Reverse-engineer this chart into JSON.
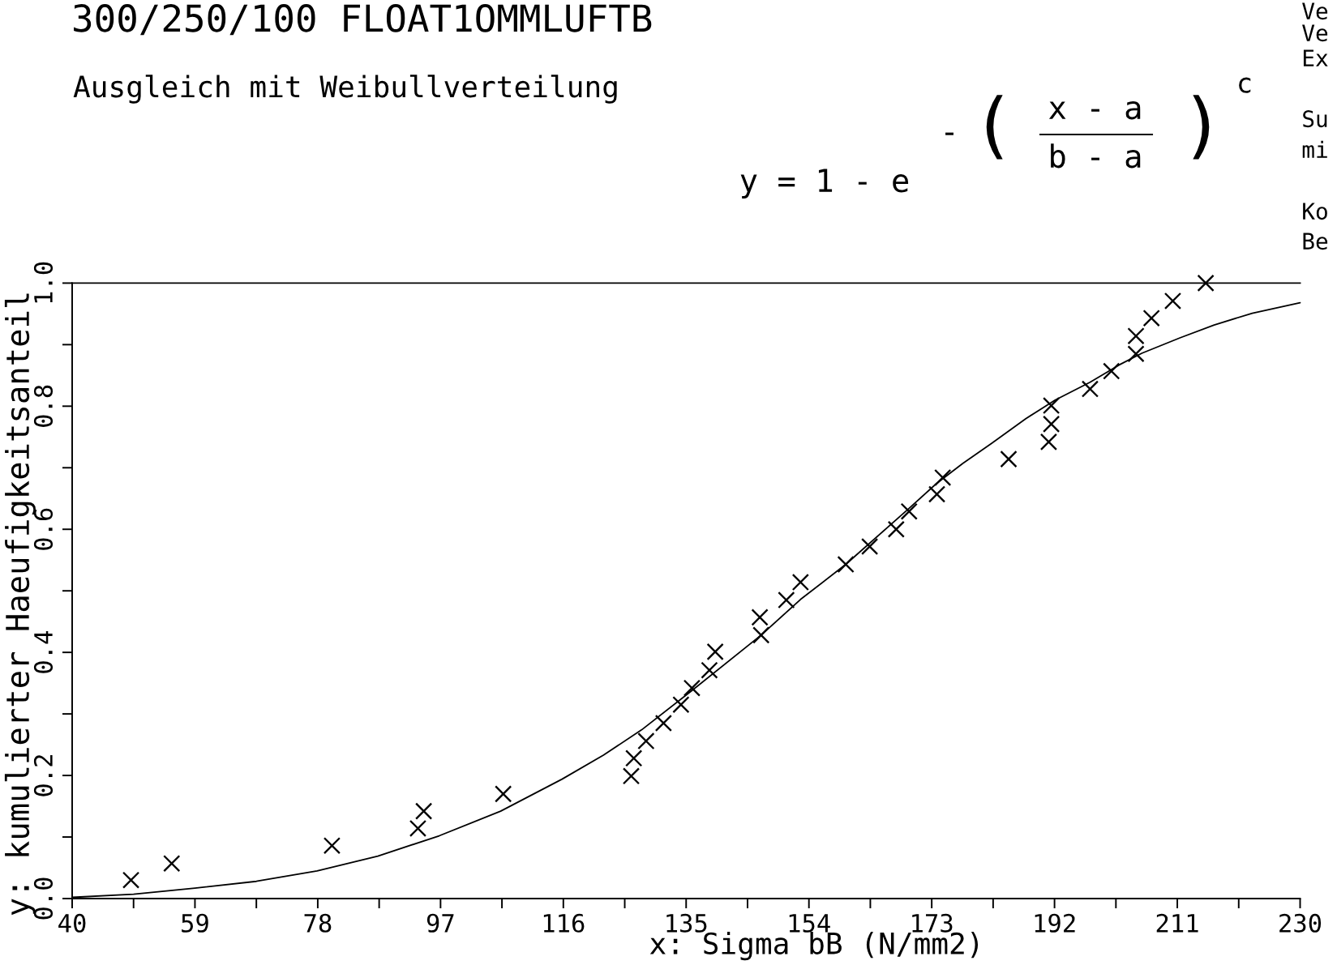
{
  "chart_data": {
    "type": "scatter",
    "title": "300/250/100 FLOAT1OMMLUFTB",
    "subtitle": "Ausgleich mit Weibullverteilung",
    "xlabel": "x: Sigma bB (N/mm2)",
    "ylabel": "y: kumulierter Haeufigkeitsanteil",
    "annotations": [
      "y = 1 - e",
      "-",
      "(",
      "x - a",
      "b - a",
      ")",
      "c",
      "Ve",
      "Ve",
      "Ex",
      "Su",
      "mi",
      "Ko",
      "Be"
    ],
    "xlim": [
      40,
      230
    ],
    "ylim": [
      0.0,
      1.0
    ],
    "xticks": [
      40,
      {
        "value": 49.5,
        "label": null
      },
      59,
      {
        "value": 68.5,
        "label": null
      },
      78,
      {
        "value": 87.5,
        "label": null
      },
      97,
      {
        "value": 106.5,
        "label": null
      },
      116,
      {
        "value": 125.5,
        "label": null
      },
      135,
      {
        "value": 144.5,
        "label": null
      },
      154,
      {
        "value": 163.5,
        "label": null
      },
      173,
      {
        "value": 182.5,
        "label": null
      },
      192,
      {
        "value": 201.5,
        "label": null
      },
      211,
      {
        "value": 220.5,
        "label": null
      },
      230
    ],
    "yticks": [
      {
        "value": 0.0,
        "label": "0.0"
      },
      {
        "value": 0.1,
        "label": null
      },
      {
        "value": 0.2,
        "label": "0.2"
      },
      {
        "value": 0.3,
        "label": null
      },
      {
        "value": 0.4,
        "label": "0.4"
      },
      {
        "value": 0.5,
        "label": null
      },
      {
        "value": 0.6,
        "label": "0.6"
      },
      {
        "value": 0.7,
        "label": null
      },
      {
        "value": 0.8,
        "label": "0.8"
      },
      {
        "value": 0.9,
        "label": null
      },
      {
        "value": 1.0,
        "label": "1.0"
      }
    ],
    "ref_lines": [
      {
        "axis": "y",
        "value": 1.0,
        "color": "#000000"
      }
    ],
    "series": [
      {
        "type": "scatter",
        "color": "#000000",
        "marker": "cross",
        "x": [
          49.1,
          55.4,
          80.2,
          93.5,
          94.4,
          106.7,
          126.5,
          126.9,
          128.8,
          131.5,
          134.2,
          135.9,
          138.6,
          139.5,
          146.6,
          146.4,
          150.5,
          152.7,
          159.7,
          163.4,
          167.5,
          169.5,
          173.8,
          174.7,
          184.9,
          191.1,
          191.5,
          191.5,
          197.5,
          200.8,
          204.6,
          204.6,
          207.0,
          210.3,
          215.4
        ],
        "values": [
          0.03,
          0.057,
          0.086,
          0.114,
          0.142,
          0.17,
          0.199,
          0.228,
          0.256,
          0.285,
          0.315,
          0.342,
          0.371,
          0.401,
          0.428,
          0.457,
          0.485,
          0.514,
          0.543,
          0.572,
          0.6,
          0.629,
          0.657,
          0.684,
          0.714,
          0.742,
          0.771,
          0.801,
          0.828,
          0.857,
          0.885,
          0.914,
          0.943,
          0.971,
          1.0
        ]
      },
      {
        "type": "line",
        "color": "#000000",
        "line_style": "solid",
        "x": [
          40,
          49.5,
          59.0,
          68.5,
          77.9,
          87.3,
          96.8,
          106.3,
          115.8,
          122.2,
          128.1,
          135.9,
          146.6,
          152.7,
          159.7,
          169.5,
          173.7,
          177.8,
          182.3,
          187.6,
          192.1,
          197.5,
          202.0,
          205.5,
          211.4,
          216.7,
          222.6,
          230.0
        ],
        "values": [
          0.002,
          0.007,
          0.017,
          0.028,
          0.045,
          0.069,
          0.102,
          0.142,
          0.194,
          0.233,
          0.274,
          0.338,
          0.428,
          0.486,
          0.543,
          0.634,
          0.674,
          0.707,
          0.74,
          0.78,
          0.81,
          0.839,
          0.867,
          0.886,
          0.911,
          0.932,
          0.951,
          0.968
        ]
      }
    ]
  }
}
